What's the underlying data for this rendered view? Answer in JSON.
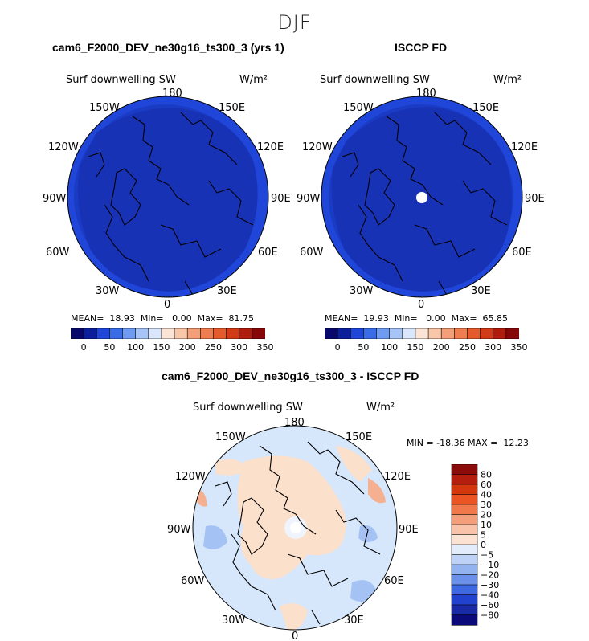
{
  "figure": {
    "season": "DJF"
  },
  "panels": [
    {
      "title": "cam6_F2000_DEV_ne30g16_ts300_3 (yrs 1)",
      "variable": "Surf downwelling SW",
      "units": "W/m²",
      "stats": "MEAN=  18.93  Min=   0.00  Max=  81.75",
      "fill_colors": [
        "#1f46d8",
        "#1a3bc4",
        "#1832b6"
      ]
    },
    {
      "title": "ISCCP FD",
      "variable": "Surf downwelling SW",
      "units": "W/m²",
      "stats": "MEAN=  19.93  Min=   0.00  Max=  65.85",
      "fill_colors": [
        "#1f46d8",
        "#1a3bc4",
        "#1832b6"
      ]
    }
  ],
  "abs_colorbar": {
    "labels": [
      "0",
      "50",
      "100",
      "150",
      "200",
      "250",
      "300",
      "350"
    ],
    "colors": [
      "#08086b",
      "#0b1f9c",
      "#1f46d8",
      "#3a6ce8",
      "#6f9bf0",
      "#a7c4f6",
      "#d9e6fb",
      "#fbe4d6",
      "#f8c6a8",
      "#f3a07a",
      "#ef7d52",
      "#e65b2e",
      "#d23b17",
      "#b01c0e",
      "#860708"
    ]
  },
  "diff_panel": {
    "title": "cam6_F2000_DEV_ne30g16_ts300_3 - ISCCP FD",
    "variable": "Surf downwelling SW",
    "units": "W/m²",
    "stats": "MIN = -18.36 MAX =  12.23",
    "colors": {
      "ocean": "#d6e6fb",
      "land_diff": "#fbe0cc",
      "blue_patch": "#a4c2f3",
      "red_patch": "#f4b090"
    }
  },
  "diff_colorbar": {
    "labels": [
      "80",
      "60",
      "40",
      "30",
      "20",
      "10",
      "5",
      "0",
      "−5",
      "−10",
      "−20",
      "−30",
      "−40",
      "−60",
      "−80"
    ],
    "colors": [
      "#8c0b0b",
      "#b51d0e",
      "#d4360f",
      "#ec5424",
      "#f0784a",
      "#f39f7c",
      "#f8c3a8",
      "#fbe2d2",
      "#e2ecfb",
      "#bdd2f6",
      "#93b3f0",
      "#6a90ea",
      "#3f69e2",
      "#2142cf",
      "#1a29a6",
      "#0a0a7a"
    ]
  },
  "longitude_labels": {
    "top": "180",
    "bottom": "0",
    "upper_left": "150W",
    "upper_right": "150E",
    "mid_upper_left": "120W",
    "mid_upper_right": "120E",
    "left": "90W",
    "right": "90E",
    "mid_lower_left": "60W",
    "mid_lower_right": "60E",
    "lower_left": "30W",
    "lower_right": "30E"
  }
}
